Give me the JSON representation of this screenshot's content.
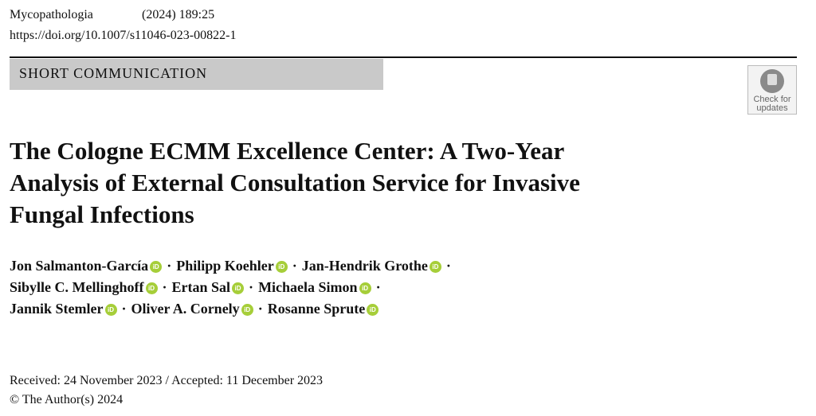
{
  "header": {
    "journal": "Mycopathologia",
    "citation": "(2024) 189:25",
    "doi": "https://doi.org/10.1007/s11046-023-00822-1"
  },
  "section": "SHORT COMMUNICATION",
  "badge": {
    "lines": [
      "Check for",
      "updates"
    ]
  },
  "title": [
    "The Cologne ECMM Excellence Center: A Two-Year",
    "Analysis of External Consultation Service for Invasive",
    "Fungal Infections"
  ],
  "authors": {
    "separator": "·",
    "orcid_label": "iD",
    "lines": [
      [
        "Jon Salmanton-García",
        "Philipp Koehler",
        "Jan-Hendrik Grothe"
      ],
      [
        "Sibylle C. Mellinghoff",
        "Ertan Sal",
        "Michaela Simon"
      ],
      [
        "Jannik Stemler",
        "Oliver A. Cornely",
        "Rosanne Sprute"
      ]
    ]
  },
  "dates": "Received: 24 November 2023 / Accepted: 11 December 2023",
  "copyright": "© The Author(s) 2024"
}
